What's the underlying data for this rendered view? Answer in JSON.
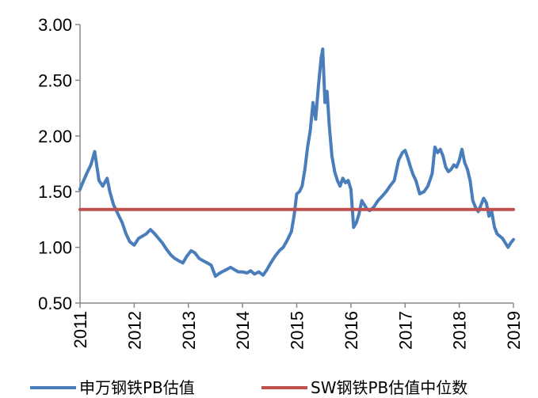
{
  "chart_data": {
    "type": "line",
    "title": "",
    "xlabel": "",
    "ylabel": "",
    "ylim": [
      0.5,
      3.0
    ],
    "xlim": [
      2011,
      2019
    ],
    "y_ticks": [
      "0.50",
      "1.00",
      "1.50",
      "2.00",
      "2.50",
      "3.00"
    ],
    "x_ticks": [
      "2011",
      "2012",
      "2013",
      "2014",
      "2015",
      "2016",
      "2017",
      "2018",
      "2019"
    ],
    "grid": false,
    "legend_position": "bottom",
    "series": [
      {
        "name": "申万钢铁PB估值",
        "color": "#4a7ebb",
        "x": [
          2011.0,
          2011.05,
          2011.12,
          2011.2,
          2011.27,
          2011.35,
          2011.42,
          2011.5,
          2011.55,
          2011.62,
          2011.7,
          2011.78,
          2011.85,
          2011.92,
          2012.0,
          2012.08,
          2012.15,
          2012.22,
          2012.3,
          2012.38,
          2012.45,
          2012.52,
          2012.6,
          2012.68,
          2012.75,
          2012.82,
          2012.9,
          2012.97,
          2013.05,
          2013.12,
          2013.2,
          2013.27,
          2013.35,
          2013.42,
          2013.5,
          2013.55,
          2013.62,
          2013.7,
          2013.78,
          2013.85,
          2013.92,
          2014.0,
          2014.08,
          2014.15,
          2014.22,
          2014.3,
          2014.38,
          2014.45,
          2014.52,
          2014.6,
          2014.68,
          2014.75,
          2014.82,
          2014.9,
          2014.95,
          2015.0,
          2015.05,
          2015.1,
          2015.15,
          2015.2,
          2015.25,
          2015.3,
          2015.35,
          2015.4,
          2015.45,
          2015.48,
          2015.52,
          2015.56,
          2015.6,
          2015.65,
          2015.7,
          2015.75,
          2015.8,
          2015.85,
          2015.9,
          2015.95,
          2016.0,
          2016.05,
          2016.1,
          2016.15,
          2016.2,
          2016.25,
          2016.3,
          2016.35,
          2016.42,
          2016.5,
          2016.58,
          2016.65,
          2016.72,
          2016.8,
          2016.88,
          2016.95,
          2017.0,
          2017.05,
          2017.1,
          2017.15,
          2017.2,
          2017.27,
          2017.35,
          2017.42,
          2017.5,
          2017.55,
          2017.6,
          2017.65,
          2017.7,
          2017.75,
          2017.8,
          2017.85,
          2017.9,
          2017.95,
          2018.0,
          2018.05,
          2018.1,
          2018.15,
          2018.2,
          2018.25,
          2018.3,
          2018.35,
          2018.4,
          2018.45,
          2018.5,
          2018.55,
          2018.6,
          2018.65,
          2018.7,
          2018.75,
          2018.8,
          2018.85,
          2018.9,
          2018.95,
          2019.0
        ],
        "values": [
          1.52,
          1.58,
          1.66,
          1.74,
          1.86,
          1.6,
          1.55,
          1.62,
          1.5,
          1.38,
          1.3,
          1.22,
          1.12,
          1.05,
          1.02,
          1.08,
          1.1,
          1.12,
          1.16,
          1.12,
          1.08,
          1.04,
          0.98,
          0.93,
          0.9,
          0.88,
          0.86,
          0.92,
          0.97,
          0.95,
          0.9,
          0.88,
          0.86,
          0.84,
          0.74,
          0.76,
          0.78,
          0.8,
          0.82,
          0.8,
          0.78,
          0.78,
          0.77,
          0.79,
          0.76,
          0.78,
          0.75,
          0.8,
          0.86,
          0.92,
          0.97,
          1.0,
          1.06,
          1.14,
          1.28,
          1.48,
          1.5,
          1.55,
          1.7,
          1.9,
          2.05,
          2.3,
          2.15,
          2.45,
          2.7,
          2.78,
          2.3,
          2.4,
          2.1,
          1.82,
          1.68,
          1.6,
          1.55,
          1.62,
          1.58,
          1.6,
          1.52,
          1.18,
          1.22,
          1.3,
          1.42,
          1.38,
          1.34,
          1.33,
          1.36,
          1.42,
          1.46,
          1.5,
          1.55,
          1.6,
          1.78,
          1.85,
          1.87,
          1.8,
          1.72,
          1.65,
          1.6,
          1.48,
          1.5,
          1.55,
          1.66,
          1.9,
          1.85,
          1.88,
          1.82,
          1.72,
          1.68,
          1.7,
          1.74,
          1.72,
          1.78,
          1.88,
          1.76,
          1.7,
          1.6,
          1.42,
          1.36,
          1.32,
          1.38,
          1.44,
          1.4,
          1.28,
          1.32,
          1.18,
          1.12,
          1.1,
          1.08,
          1.04,
          1.0,
          1.04,
          1.07
        ]
      },
      {
        "name": "SW钢铁PB估值中位数",
        "color": "#c0504d",
        "x": [
          2011.0,
          2019.0
        ],
        "values": [
          1.34,
          1.34
        ]
      }
    ]
  }
}
